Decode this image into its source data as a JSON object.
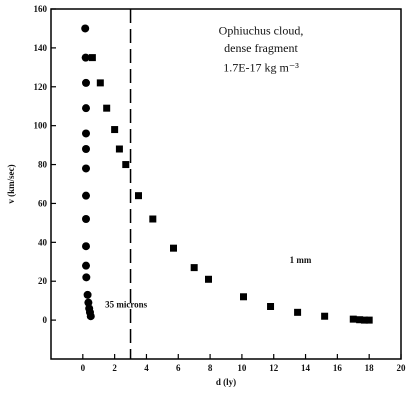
{
  "chart_data": {
    "type": "scatter",
    "title_lines": [
      "Ophiuchus cloud,",
      "dense fragment",
      "1.7E-17 kg m⁻³"
    ],
    "xlabel": "d (ly)",
    "ylabel": "v (km/sec)",
    "xlim": [
      -2,
      20
    ],
    "ylim": [
      -20,
      160
    ],
    "xticks": [
      0,
      2,
      4,
      6,
      8,
      10,
      12,
      14,
      16,
      18,
      20
    ],
    "yticks": [
      0,
      20,
      40,
      60,
      80,
      100,
      120,
      140,
      160
    ],
    "grid": false,
    "legend": "none",
    "vline": {
      "x": 3.0,
      "style": "dashed"
    },
    "series": [
      {
        "name": "35 microns",
        "marker": "circle",
        "color": "#000000",
        "points": [
          [
            0.15,
            150
          ],
          [
            0.18,
            135
          ],
          [
            0.2,
            122
          ],
          [
            0.2,
            109
          ],
          [
            0.2,
            96
          ],
          [
            0.2,
            88
          ],
          [
            0.2,
            78
          ],
          [
            0.2,
            64
          ],
          [
            0.2,
            52
          ],
          [
            0.2,
            38
          ],
          [
            0.2,
            28
          ],
          [
            0.22,
            22
          ],
          [
            0.3,
            13
          ],
          [
            0.35,
            9
          ],
          [
            0.4,
            6
          ],
          [
            0.45,
            4
          ],
          [
            0.5,
            2
          ]
        ]
      },
      {
        "name": "1 mm",
        "marker": "square",
        "color": "#000000",
        "points": [
          [
            0.6,
            135
          ],
          [
            1.1,
            122
          ],
          [
            1.5,
            109
          ],
          [
            2.0,
            98
          ],
          [
            2.3,
            88
          ],
          [
            2.7,
            80
          ],
          [
            3.5,
            64
          ],
          [
            4.4,
            52
          ],
          [
            5.7,
            37
          ],
          [
            7.0,
            27
          ],
          [
            7.9,
            21
          ],
          [
            10.1,
            12
          ],
          [
            11.8,
            7
          ],
          [
            13.5,
            4
          ],
          [
            15.2,
            2
          ],
          [
            17.0,
            0.5
          ],
          [
            17.4,
            0.2
          ],
          [
            17.7,
            0
          ],
          [
            18.0,
            0
          ]
        ]
      }
    ],
    "annotations": [
      {
        "text": "35 microns",
        "x": 1.4,
        "y": 8
      },
      {
        "text": "1 mm",
        "x": 13.0,
        "y": 31
      }
    ],
    "colors": {
      "marker": "#000000",
      "axis": "#000000",
      "background": "#ffffff"
    }
  }
}
